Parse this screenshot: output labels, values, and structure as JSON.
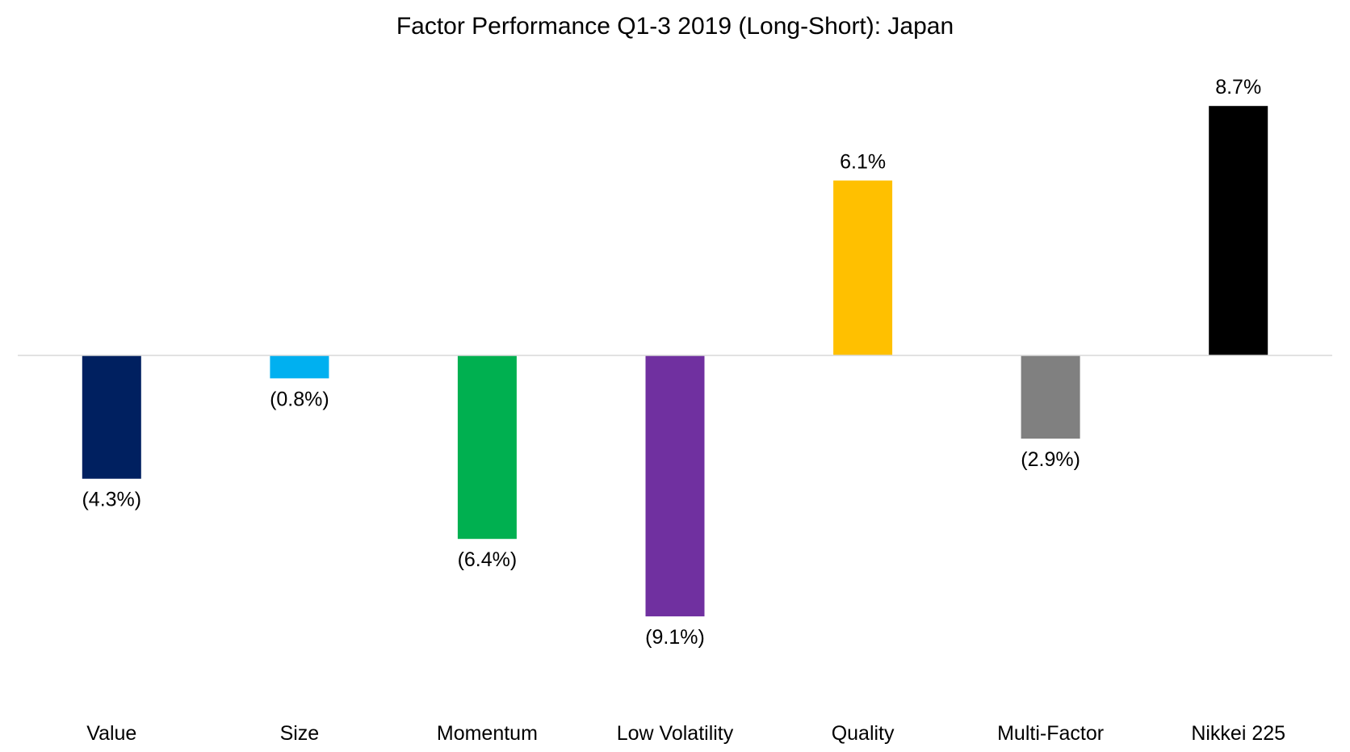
{
  "chart_data": {
    "type": "bar",
    "title": "Factor Performance Q1-3 2019 (Long-Short): Japan",
    "xlabel": "",
    "ylabel": "",
    "categories": [
      "Value",
      "Size",
      "Momentum",
      "Low Volatility",
      "Quality",
      "Multi-Factor",
      "Nikkei 225"
    ],
    "values": [
      -4.3,
      -0.8,
      -6.4,
      -9.1,
      6.1,
      -2.9,
      8.7
    ],
    "data_labels": [
      "(4.3%)",
      "(0.8%)",
      "(6.4%)",
      "(9.1%)",
      "6.1%",
      "(2.9%)",
      "8.7%"
    ],
    "colors": [
      "#002060",
      "#00B0F0",
      "#00B050",
      "#7030A0",
      "#FFC000",
      "#808080",
      "#000000"
    ],
    "axis_color": "#D9D9D9",
    "grid": false,
    "legend": "none"
  }
}
